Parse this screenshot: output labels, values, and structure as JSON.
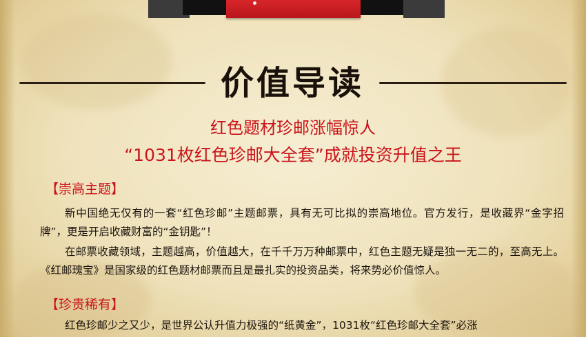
{
  "section_title": "价值导读",
  "subtitle_line1": "红色题材珍邮涨幅惊人",
  "subtitle_line2": "“1031枚红色珍邮大全套”成就投资升值之王",
  "sections": [
    {
      "heading": "【崇高主题】",
      "paragraphs": [
        "新中国绝无仅有的一套“红色珍邮”主题邮票，具有无可比拟的崇高地位。官方发行，是收藏界“金字招牌”，更是开启收藏财富的“金钥匙”！",
        "在邮票收藏领域，主题越高，价值越大，在千千万万种邮票中，红色主题无疑是独一无二的，至高无上。《红邮瑰宝》是国家级的红色题材邮票而且是最扎实的投资品类，将来势必价值惊人。"
      ]
    },
    {
      "heading": "【珍贵稀有】",
      "paragraphs": [
        "红色珍邮少之又少，是世界公认升值力极强的“纸黄金”，1031枚“红色珍邮大全套”必涨"
      ]
    }
  ],
  "colors": {
    "accent_red": "#c9141b",
    "text_dark": "#1c150e",
    "parchment": "#efe2bb"
  }
}
